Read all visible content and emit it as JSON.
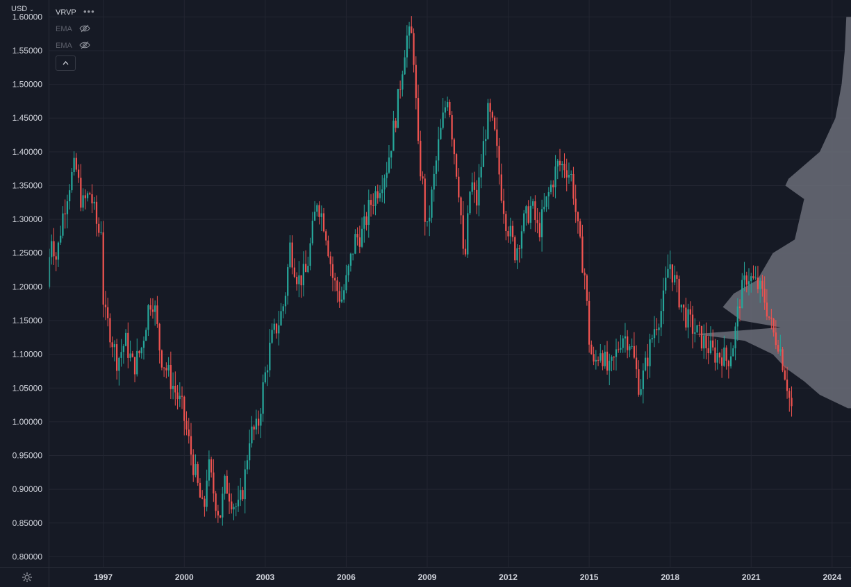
{
  "toolbar": {
    "currency_label": "USD",
    "indicator_vrvp": "VRVP",
    "indicator_more": "•••",
    "indicator_ema_1": "EMA",
    "indicator_ema_2": "EMA"
  },
  "colors": {
    "background": "#161a25",
    "grid": "#232632",
    "axis_text": "#d1d4dc",
    "up": "#26a69a",
    "down": "#ef5350",
    "volume_profile": "#6a6d78"
  },
  "chart_data": {
    "type": "candlestick",
    "interval": "monthly",
    "title": "",
    "xlabel": "",
    "ylabel": "",
    "ylim": [
      0.785,
      1.625
    ],
    "xlim": [
      1995.0,
      2024.7
    ],
    "y_ticks": [
      "1.60000",
      "1.55000",
      "1.50000",
      "1.45000",
      "1.40000",
      "1.35000",
      "1.30000",
      "1.25000",
      "1.20000",
      "1.15000",
      "1.10000",
      "1.05000",
      "1.00000",
      "0.95000",
      "0.90000",
      "0.85000",
      "0.80000"
    ],
    "x_ticks": [
      "1997",
      "2000",
      "2003",
      "2006",
      "2009",
      "2012",
      "2015",
      "2018",
      "2021",
      "2024"
    ],
    "grid": true,
    "series": [
      {
        "type": "candles",
        "path": [
          [
            1995.0,
            1.2
          ],
          [
            1995.15,
            1.28
          ],
          [
            1995.35,
            1.24
          ],
          [
            1995.55,
            1.3
          ],
          [
            1995.8,
            1.35
          ],
          [
            1996.05,
            1.38
          ],
          [
            1996.3,
            1.32
          ],
          [
            1996.6,
            1.34
          ],
          [
            1996.9,
            1.28
          ],
          [
            1997.0,
            1.29
          ],
          [
            1997.1,
            1.16
          ],
          [
            1997.3,
            1.14
          ],
          [
            1997.6,
            1.09
          ],
          [
            1997.9,
            1.12
          ],
          [
            1998.2,
            1.08
          ],
          [
            1998.5,
            1.11
          ],
          [
            1998.8,
            1.18
          ],
          [
            1998.95,
            1.18
          ],
          [
            1999.2,
            1.1
          ],
          [
            1999.5,
            1.07
          ],
          [
            1999.8,
            1.04
          ],
          [
            2000.0,
            1.02
          ],
          [
            2000.3,
            0.96
          ],
          [
            2000.6,
            0.9
          ],
          [
            2000.8,
            0.86
          ],
          [
            2000.95,
            0.94
          ],
          [
            2001.2,
            0.89
          ],
          [
            2001.4,
            0.86
          ],
          [
            2001.6,
            0.91
          ],
          [
            2001.9,
            0.88
          ],
          [
            2002.1,
            0.87
          ],
          [
            2002.3,
            0.91
          ],
          [
            2002.5,
            0.98
          ],
          [
            2002.8,
            0.99
          ],
          [
            2003.0,
            1.05
          ],
          [
            2003.3,
            1.12
          ],
          [
            2003.6,
            1.15
          ],
          [
            2003.8,
            1.18
          ],
          [
            2004.0,
            1.26
          ],
          [
            2004.3,
            1.21
          ],
          [
            2004.6,
            1.22
          ],
          [
            2004.9,
            1.3
          ],
          [
            2005.0,
            1.33
          ],
          [
            2005.3,
            1.29
          ],
          [
            2005.6,
            1.21
          ],
          [
            2005.9,
            1.18
          ],
          [
            2006.1,
            1.21
          ],
          [
            2006.4,
            1.27
          ],
          [
            2006.7,
            1.28
          ],
          [
            2006.95,
            1.32
          ],
          [
            2007.3,
            1.35
          ],
          [
            2007.6,
            1.38
          ],
          [
            2007.95,
            1.46
          ],
          [
            2008.3,
            1.57
          ],
          [
            2008.55,
            1.57
          ],
          [
            2008.75,
            1.4
          ],
          [
            2008.95,
            1.34
          ],
          [
            2009.05,
            1.27
          ],
          [
            2009.2,
            1.32
          ],
          [
            2009.5,
            1.41
          ],
          [
            2009.85,
            1.49
          ],
          [
            2010.0,
            1.43
          ],
          [
            2010.3,
            1.33
          ],
          [
            2010.45,
            1.22
          ],
          [
            2010.7,
            1.36
          ],
          [
            2010.9,
            1.32
          ],
          [
            2011.2,
            1.42
          ],
          [
            2011.35,
            1.46
          ],
          [
            2011.6,
            1.42
          ],
          [
            2011.8,
            1.35
          ],
          [
            2012.0,
            1.3
          ],
          [
            2012.35,
            1.25
          ],
          [
            2012.6,
            1.29
          ],
          [
            2012.95,
            1.32
          ],
          [
            2013.2,
            1.28
          ],
          [
            2013.6,
            1.34
          ],
          [
            2013.9,
            1.38
          ],
          [
            2014.2,
            1.38
          ],
          [
            2014.45,
            1.36
          ],
          [
            2014.7,
            1.27
          ],
          [
            2014.95,
            1.21
          ],
          [
            2015.05,
            1.13
          ],
          [
            2015.25,
            1.08
          ],
          [
            2015.5,
            1.11
          ],
          [
            2015.8,
            1.07
          ],
          [
            2016.0,
            1.09
          ],
          [
            2016.3,
            1.13
          ],
          [
            2016.6,
            1.12
          ],
          [
            2016.95,
            1.05
          ],
          [
            2017.1,
            1.07
          ],
          [
            2017.5,
            1.14
          ],
          [
            2017.8,
            1.17
          ],
          [
            2018.05,
            1.24
          ],
          [
            2018.3,
            1.2
          ],
          [
            2018.6,
            1.16
          ],
          [
            2018.9,
            1.14
          ],
          [
            2019.3,
            1.12
          ],
          [
            2019.7,
            1.1
          ],
          [
            2020.0,
            1.1
          ],
          [
            2020.2,
            1.09
          ],
          [
            2020.45,
            1.12
          ],
          [
            2020.65,
            1.18
          ],
          [
            2020.95,
            1.22
          ],
          [
            2021.1,
            1.21
          ],
          [
            2021.35,
            1.2
          ],
          [
            2021.6,
            1.18
          ],
          [
            2021.9,
            1.13
          ],
          [
            2022.1,
            1.12
          ],
          [
            2022.3,
            1.08
          ],
          [
            2022.45,
            1.05
          ],
          [
            2022.55,
            1.02
          ]
        ]
      },
      {
        "type": "volume_profile",
        "price_levels": [
          1.6,
          1.55,
          1.5,
          1.45,
          1.4,
          1.36,
          1.35,
          1.33,
          1.3,
          1.27,
          1.25,
          1.23,
          1.21,
          1.19,
          1.17,
          1.15,
          1.14,
          1.13,
          1.12,
          1.1,
          1.08,
          1.06,
          1.04,
          1.02
        ],
        "relative_volume": [
          0.03,
          0.04,
          0.06,
          0.1,
          0.2,
          0.4,
          0.42,
          0.3,
          0.33,
          0.36,
          0.5,
          0.55,
          0.6,
          0.75,
          0.82,
          0.7,
          0.45,
          1.0,
          0.68,
          0.5,
          0.42,
          0.3,
          0.2,
          0.02
        ]
      }
    ]
  }
}
